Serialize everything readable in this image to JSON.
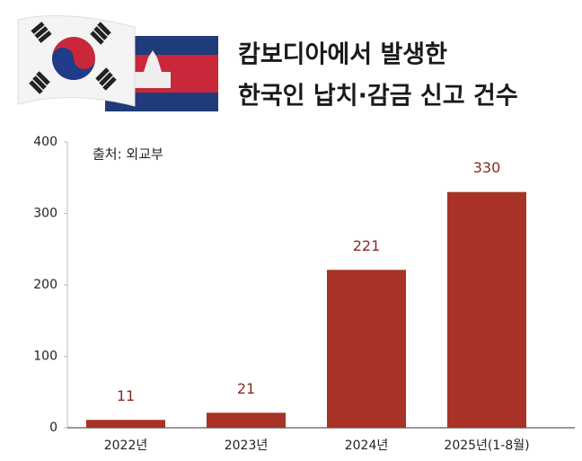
{
  "chart_data": {
    "type": "bar",
    "title": [
      "캄보디아에서 발생한",
      "한국인 납치·감금 신고 건수"
    ],
    "source": "출처: 외교부",
    "categories": [
      "2022년",
      "2023년",
      "2024년",
      "2025년(1-8월)"
    ],
    "values": [
      11,
      21,
      221,
      330
    ],
    "color": "#a83226",
    "label_color": "#8a2b1f",
    "ylim": [
      0,
      400
    ],
    "yticks": [
      0,
      100,
      200,
      300,
      400
    ],
    "grid": false
  }
}
